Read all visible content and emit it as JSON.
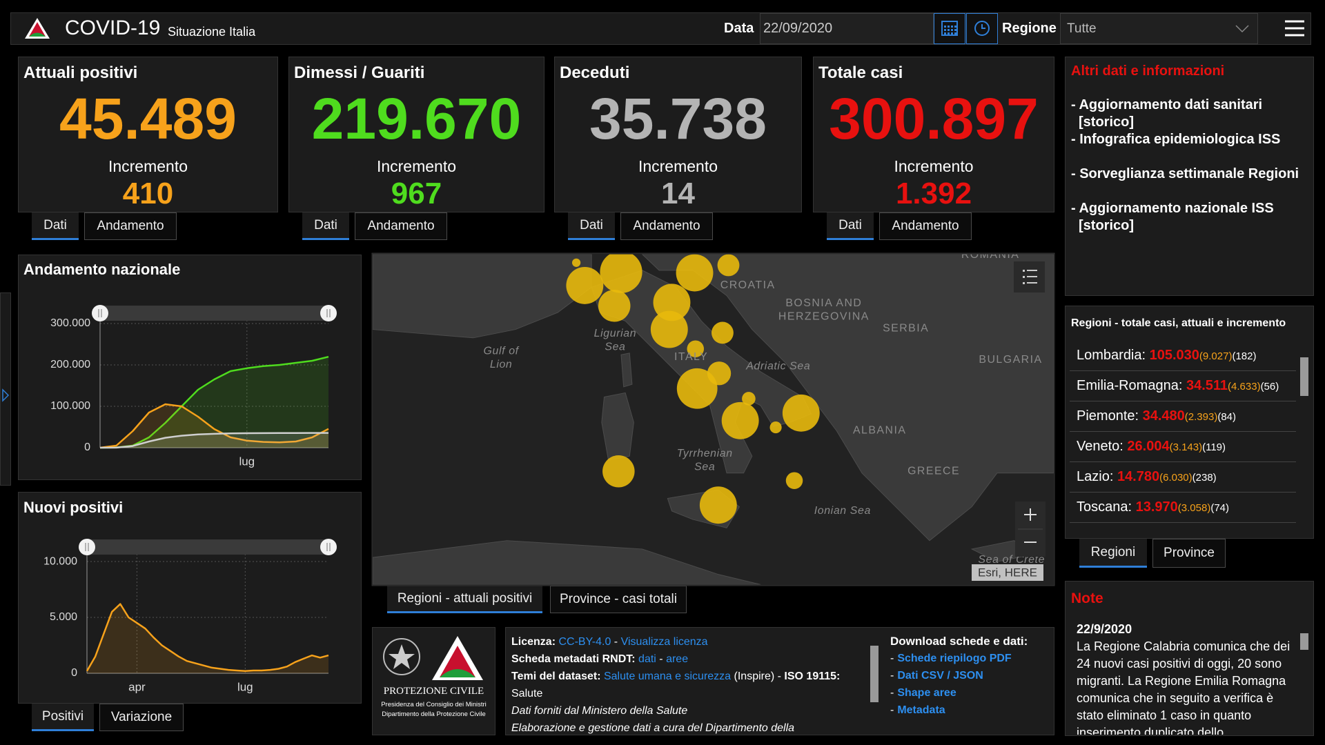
{
  "header": {
    "title": "COVID-19",
    "subtitle": "Situazione Italia",
    "date_label": "Data",
    "date_value": "22/09/2020",
    "region_label": "Regione",
    "region_value": "Tutte"
  },
  "kpis": [
    {
      "title": "Attuali positivi",
      "value": "45.489",
      "increment_label": "Incremento",
      "increment": "410",
      "color": "#f7a21b",
      "tabs": [
        "Dati",
        "Andamento"
      ],
      "active_tab": 0
    },
    {
      "title": "Dimessi / Guariti",
      "value": "219.670",
      "increment_label": "Incremento",
      "increment": "967",
      "color": "#4fdc1e",
      "tabs": [
        "Dati",
        "Andamento"
      ],
      "active_tab": 0
    },
    {
      "title": "Deceduti",
      "value": "35.738",
      "increment_label": "Incremento",
      "increment": "14",
      "color": "#b4b4b4",
      "tabs": [
        "Dati",
        "Andamento"
      ],
      "active_tab": 0
    },
    {
      "title": "Totale casi",
      "value": "300.897",
      "increment_label": "Incremento",
      "increment": "1.392",
      "color": "#e8110f",
      "tabs": [
        "Dati",
        "Andamento"
      ],
      "active_tab": 0
    }
  ],
  "info": {
    "title": "Altri dati e informazioni",
    "links": [
      [
        "- Aggiornamento dati sanitari",
        "[storico]"
      ],
      [
        "- Infografica epidemiologica ISS"
      ],
      [
        "- Sorveglianza settimanale Regioni"
      ],
      [
        "- Aggiornamento nazionale ISS",
        "[storico]"
      ]
    ]
  },
  "chart_data": [
    {
      "type": "line",
      "title": "Andamento nazionale",
      "categories": [
        null,
        null,
        null,
        null,
        null,
        null,
        null,
        null,
        null,
        "lug",
        null,
        null,
        null,
        null,
        null
      ],
      "series": [
        {
          "color": "#4fdc1e",
          "values": [
            0,
            500,
            5000,
            25000,
            60000,
            100000,
            140000,
            165000,
            185000,
            192000,
            197000,
            200000,
            205000,
            210000,
            219670
          ]
        },
        {
          "color": "#f7a21b",
          "values": [
            0,
            5000,
            40000,
            85000,
            105000,
            100000,
            75000,
            45000,
            25000,
            17000,
            14000,
            13000,
            15000,
            25000,
            45489
          ]
        },
        {
          "color": "#cfcfcf",
          "values": [
            0,
            200,
            4000,
            15000,
            24000,
            29000,
            32000,
            33500,
            34500,
            35000,
            35200,
            35400,
            35500,
            35600,
            35738
          ]
        }
      ],
      "ylim": [
        0,
        325000
      ],
      "yticks": [
        0,
        {
          "value": 100000,
          "label": "100.000"
        },
        {
          "value": 200000,
          "label": "200.000"
        },
        {
          "value": 300000,
          "label": "300.000"
        }
      ],
      "grid": true
    },
    {
      "type": "line",
      "title": "Nuovi positivi",
      "categories": [
        null,
        null,
        null,
        null,
        null,
        null,
        "apr",
        null,
        null,
        null,
        null,
        null,
        null,
        null,
        null,
        null,
        null,
        null,
        null,
        "lug",
        null,
        null,
        null,
        null,
        null,
        null,
        null,
        null,
        null,
        null
      ],
      "series": [
        {
          "color": "#f7a21b",
          "values": [
            200,
            1500,
            3500,
            5500,
            6200,
            5000,
            4500,
            4000,
            3200,
            2500,
            2000,
            1500,
            1100,
            900,
            700,
            500,
            400,
            300,
            250,
            200,
            250,
            250,
            300,
            400,
            600,
            1000,
            1300,
            1600,
            1400,
            1600
          ]
        }
      ],
      "ylim": [
        0,
        11300
      ],
      "yticks": [
        0,
        {
          "value": 5000,
          "label": "5.000"
        },
        {
          "value": 10000,
          "label": "10.000"
        }
      ],
      "grid": true
    }
  ],
  "chart_tabs": [
    [
      "Positivi",
      "Variazione"
    ]
  ],
  "map": {
    "labels": [
      {
        "lines": [
          "CROATIA"
        ],
        "x": 885,
        "y": 338,
        "sea": false
      },
      {
        "lines": [
          "BOSNIA AND",
          "HERZEGOVINA"
        ],
        "x": 975,
        "y": 359,
        "sea": false
      },
      {
        "lines": [
          "SERBIA"
        ],
        "x": 1072,
        "y": 389,
        "sea": false
      },
      {
        "lines": [
          "BULGARIA"
        ],
        "x": 1196,
        "y": 426,
        "sea": false
      },
      {
        "lines": [
          "ROMANIA"
        ],
        "x": 1172,
        "y": 302,
        "sea": false
      },
      {
        "lines": [
          "ALBANIA"
        ],
        "x": 1041,
        "y": 510,
        "sea": false
      },
      {
        "lines": [
          "GREECE"
        ],
        "x": 1105,
        "y": 558,
        "sea": false
      },
      {
        "lines": [
          "ITALY"
        ],
        "x": 818,
        "y": 423,
        "sea": false
      },
      {
        "lines": [
          "Ligurian",
          "Sea"
        ],
        "x": 728,
        "y": 395,
        "sea": true
      },
      {
        "lines": [
          "Gulf of",
          "Lion"
        ],
        "x": 593,
        "y": 416,
        "sea": true
      },
      {
        "lines": [
          "Adriatic Sea"
        ],
        "x": 921,
        "y": 434,
        "sea": true
      },
      {
        "lines": [
          "Tyrrhenian",
          "Sea"
        ],
        "x": 834,
        "y": 537,
        "sea": true
      },
      {
        "lines": [
          "Ionian Sea"
        ],
        "x": 997,
        "y": 605,
        "sea": true
      },
      {
        "lines": [
          "Sea of Crete"
        ],
        "x": 1197,
        "y": 663,
        "sea": true
      }
    ],
    "attribution": "Esri, HERE",
    "tabs": [
      "Regioni - attuali positivi",
      "Province - casi totali"
    ],
    "active_tab": 0
  },
  "regions": {
    "title": "Regioni - totale casi, attuali e incremento",
    "rows": [
      {
        "name": "Lombardia:",
        "total": "105.030",
        "current": "(9.027)",
        "increment": "(182)"
      },
      {
        "name": "Emilia-Romagna:",
        "total": "34.511",
        "current": "(4.633)",
        "increment": "(56)"
      },
      {
        "name": "Piemonte:",
        "total": "34.480",
        "current": "(2.393)",
        "increment": "(84)"
      },
      {
        "name": "Veneto:",
        "total": "26.004",
        "current": "(3.143)",
        "increment": "(119)"
      },
      {
        "name": "Lazio:",
        "total": "14.780",
        "current": "(6.030)",
        "increment": "(238)"
      },
      {
        "name": "Toscana:",
        "total": "13.970",
        "current": "(3.058)",
        "increment": "(74)"
      }
    ],
    "tabs": [
      "Regioni",
      "Province"
    ],
    "active_tab": 0
  },
  "note": {
    "title": "Note",
    "date": "22/9/2020",
    "text": "La Regione Calabria comunica che dei 24 nuovi casi positivi di oggi, 20 sono migranti. La Regione Emilia Romagna comunica che in seguito a verifica è stato eliminato 1 caso in quanto inserimento duplicato dello"
  },
  "logo": {
    "name": "PROTEZIONE CIVILE",
    "line1": "Presidenza del Consiglio dei Ministri",
    "line2": "Dipartimento della Protezione Civile"
  },
  "license": {
    "lines": [
      [
        {
          "text": "Licenza: ",
          "kind": "label"
        },
        {
          "text": "CC-BY-4.0",
          "kind": "link"
        },
        {
          "text": " - ",
          "kind": "plain"
        },
        {
          "text": "Visualizza licenza",
          "kind": "link"
        }
      ],
      [
        {
          "text": "Scheda metadati RNDT: ",
          "kind": "label"
        },
        {
          "text": "dati",
          "kind": "link"
        },
        {
          "text": " - ",
          "kind": "plain"
        },
        {
          "text": "aree",
          "kind": "link"
        }
      ],
      [
        {
          "text": "Temi del dataset: ",
          "kind": "label"
        },
        {
          "text": "Salute umana e sicurezza",
          "kind": "link"
        },
        {
          "text": " (Inspire) - ",
          "kind": "plain"
        },
        {
          "text": "ISO 19115: ",
          "kind": "label"
        },
        {
          "text": "Salute",
          "kind": "plain"
        }
      ],
      [
        {
          "text": "Dati forniti dal Ministero della Salute",
          "kind": "italic"
        }
      ],
      [
        {
          "text": "Elaborazione e gestione dati a cura del Dipartimento della",
          "kind": "italic"
        }
      ]
    ]
  },
  "downloads": {
    "title": "Download schede e dati:",
    "bullet": "-",
    "links": [
      "Schede riepilogo PDF",
      "Dati CSV / JSON",
      "Shape aree",
      "Metadata"
    ]
  }
}
